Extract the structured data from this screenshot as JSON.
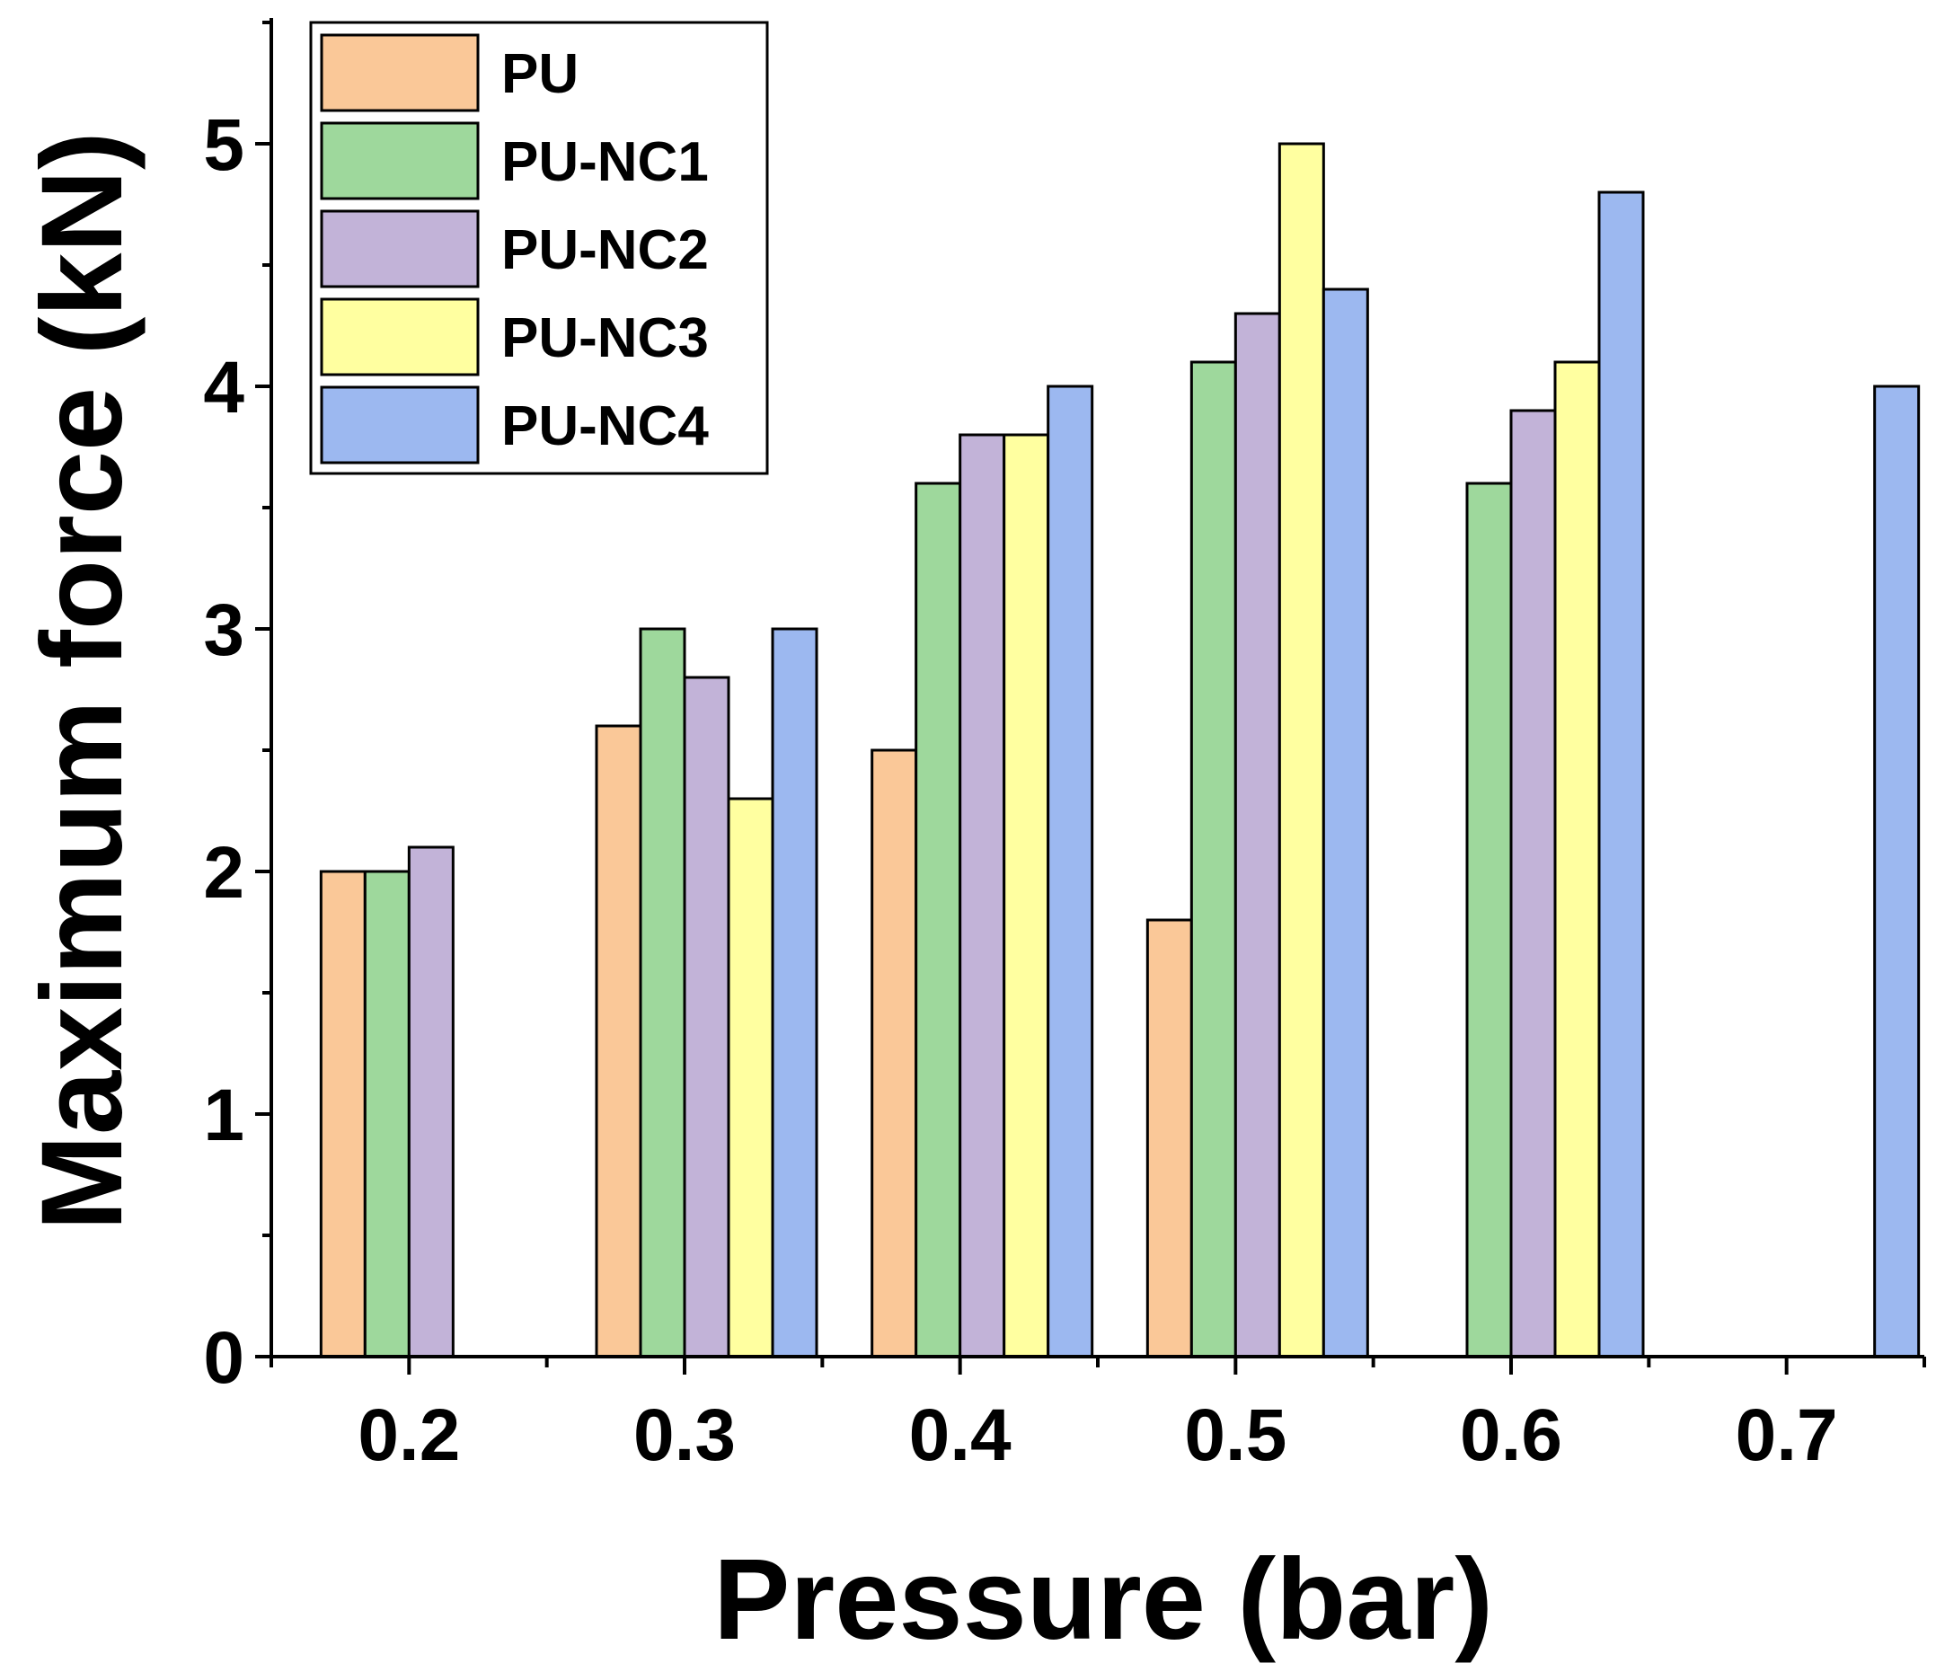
{
  "chart_data": {
    "type": "bar",
    "title": "",
    "xlabel": "Pressure (bar)",
    "ylabel": "Maximum force (kN)",
    "categories": [
      "0.2",
      "0.3",
      "0.4",
      "0.5",
      "0.6",
      "0.7"
    ],
    "ylim": [
      0,
      5.5
    ],
    "yticks": [
      "0",
      "1",
      "2",
      "3",
      "4",
      "5"
    ],
    "grid": false,
    "legend_position": "top-left",
    "series": [
      {
        "name": "PU",
        "color": "#FAC898",
        "values": [
          2.0,
          2.6,
          2.5,
          1.8,
          null,
          null
        ]
      },
      {
        "name": "PU-NC1",
        "color": "#9ED89C",
        "values": [
          2.0,
          3.0,
          3.6,
          4.1,
          3.6,
          null
        ]
      },
      {
        "name": "PU-NC2",
        "color": "#C2B3D8",
        "values": [
          2.1,
          2.8,
          3.8,
          4.3,
          3.9,
          null
        ]
      },
      {
        "name": "PU-NC3",
        "color": "#FFFFA0",
        "values": [
          null,
          2.3,
          3.8,
          5.0,
          4.1,
          null
        ]
      },
      {
        "name": "PU-NC4",
        "color": "#9CB8F0",
        "values": [
          null,
          3.0,
          4.0,
          4.4,
          4.8,
          4.0
        ]
      }
    ]
  }
}
